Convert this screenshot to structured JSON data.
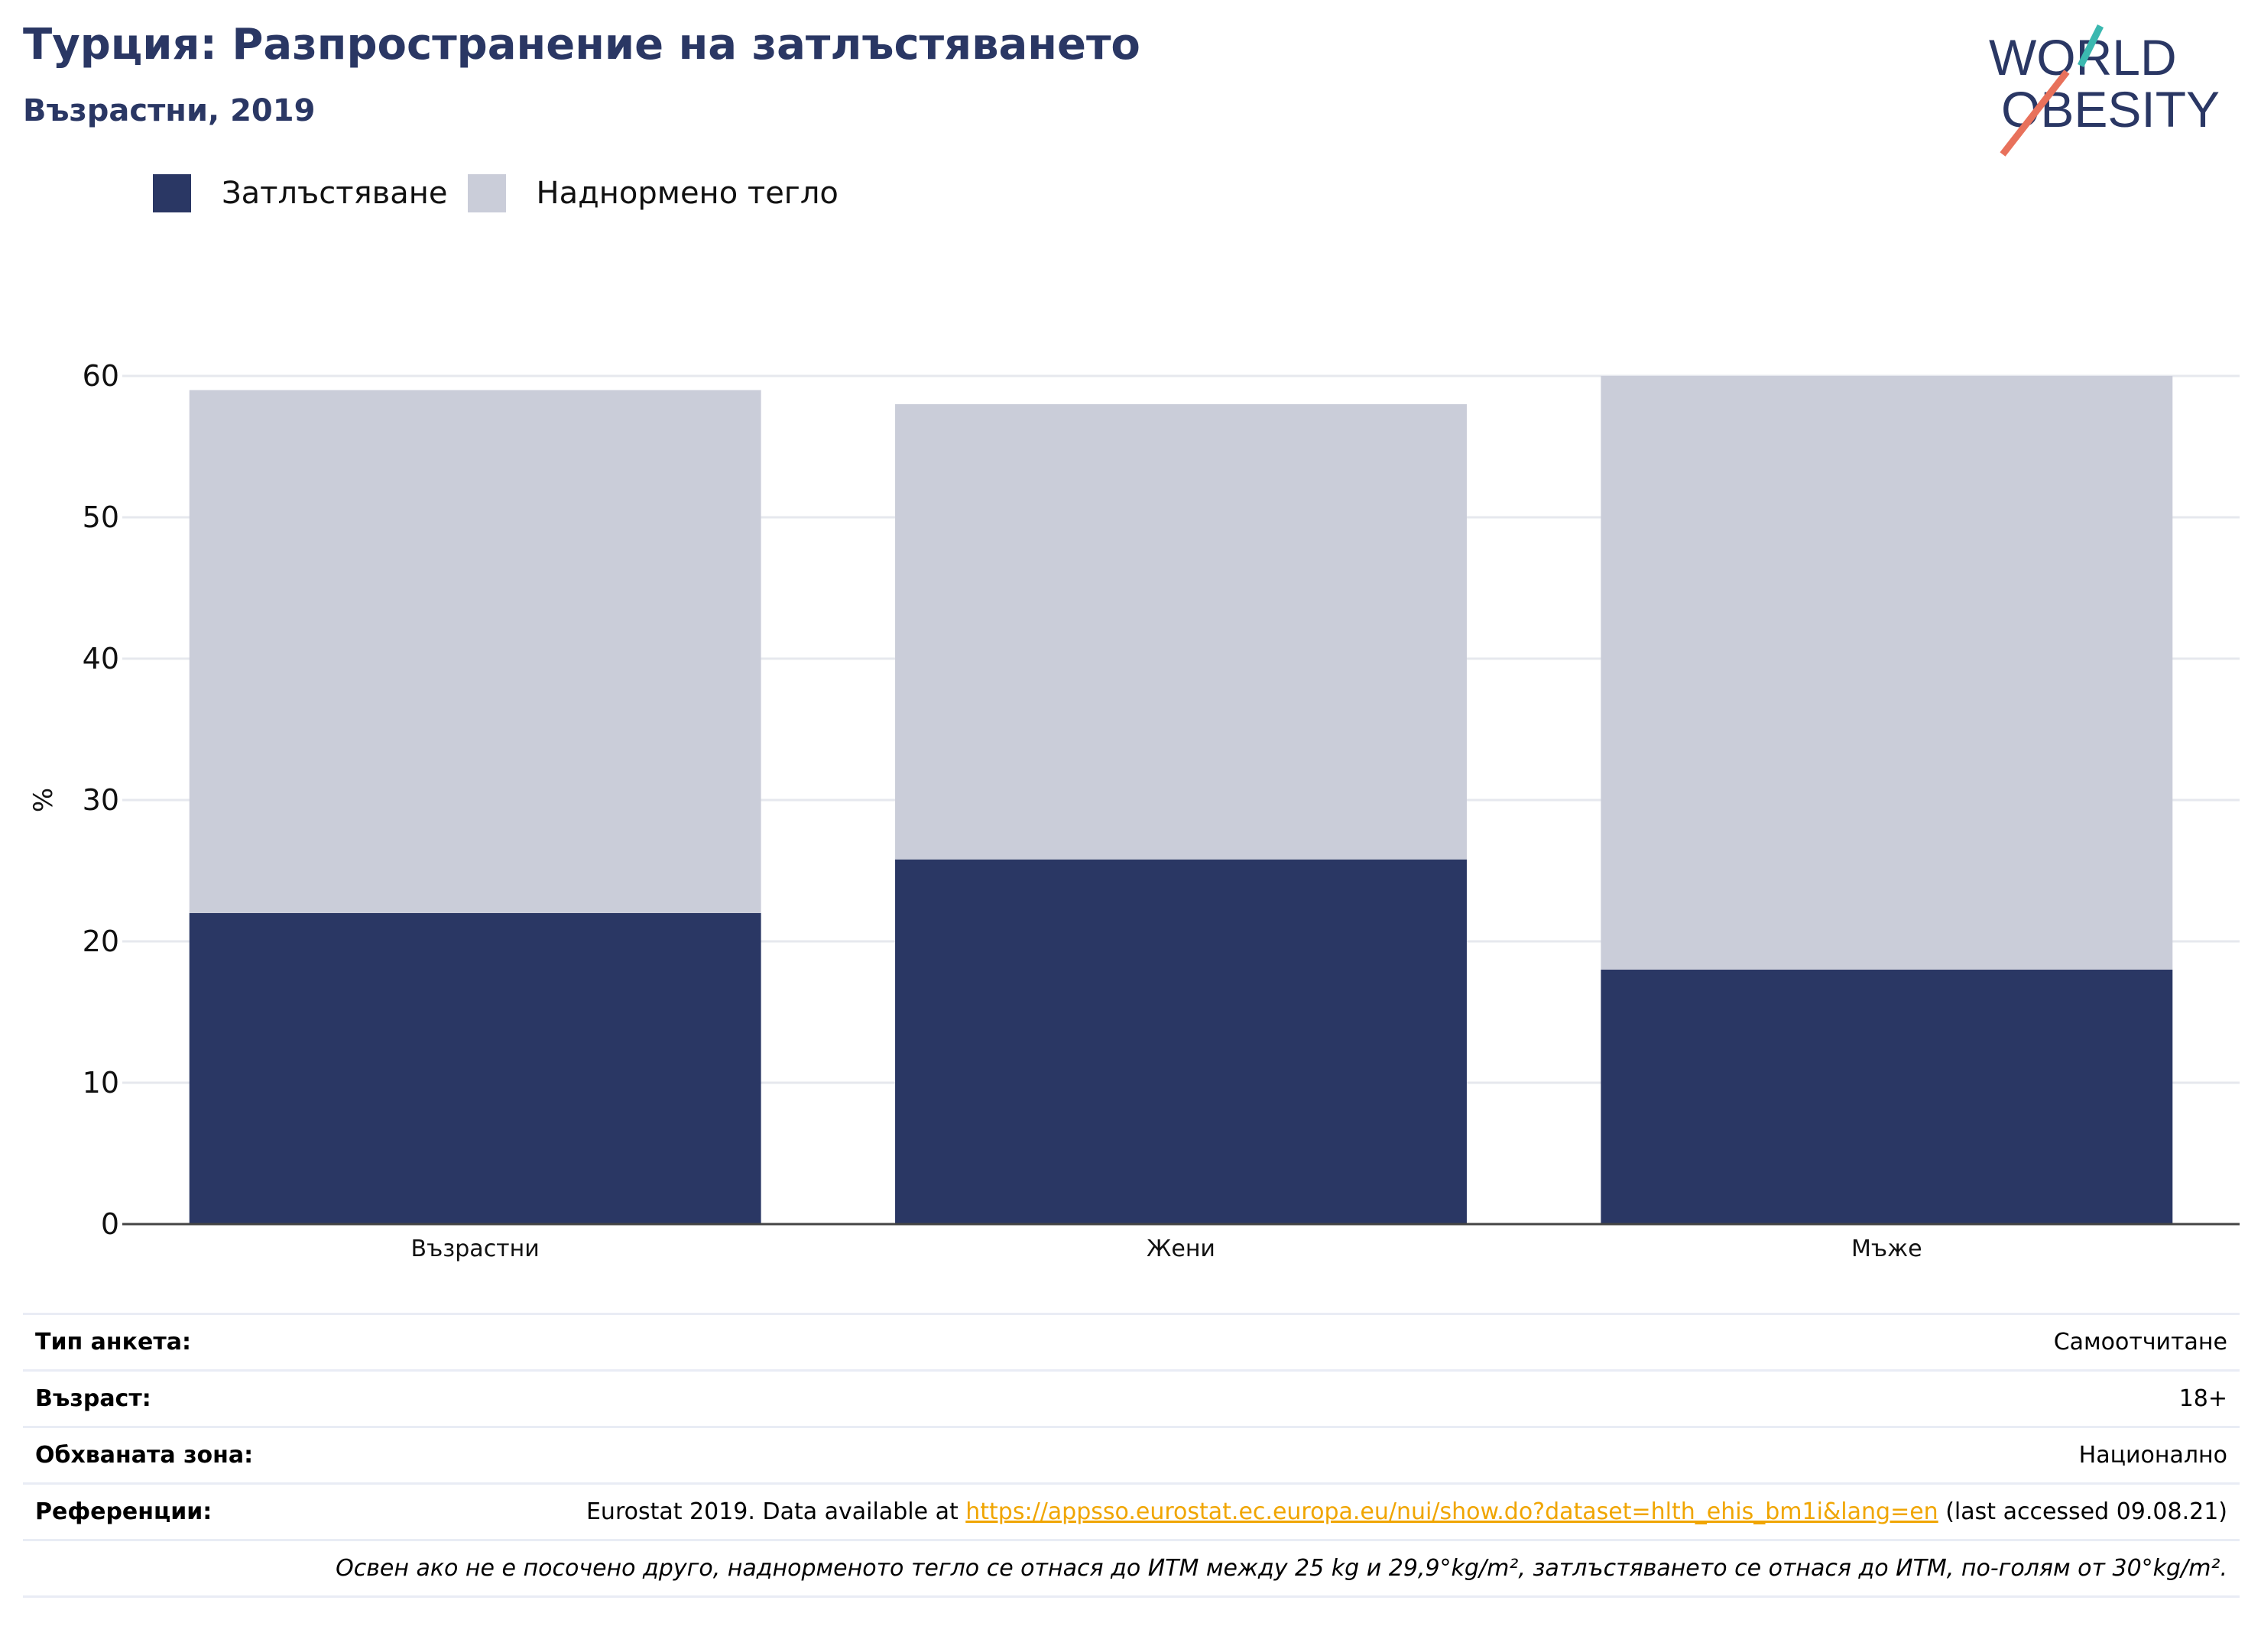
{
  "header": {
    "title": "Турция: Разпространение на затлъстяването",
    "subtitle": "Възрастни, 2019"
  },
  "logo": {
    "line1": "WORLD",
    "line2": "OBESITY"
  },
  "legend": [
    {
      "label": "Затлъстяване",
      "color": "#2a3764"
    },
    {
      "label": "Наднормено тегло",
      "color": "#cacdd9"
    }
  ],
  "chart_data": {
    "type": "bar",
    "stacked": true,
    "categories": [
      "Възрастни",
      "Жени",
      "Мъже"
    ],
    "series": [
      {
        "name": "Затлъстяване",
        "color": "#2a3764",
        "values": [
          22.0,
          25.8,
          18.0
        ]
      },
      {
        "name": "Наднормено тегло",
        "color": "#cacdd9",
        "values": [
          37.0,
          32.2,
          42.0
        ]
      }
    ],
    "ylabel": "%",
    "ylim": [
      0,
      60
    ],
    "yticks": [
      0,
      10,
      20,
      30,
      40,
      50,
      60
    ],
    "grid": true,
    "legend_position": "top-left"
  },
  "info": {
    "rows": [
      {
        "key": "Тип анкета:",
        "value": "Самоотчитане"
      },
      {
        "key": "Възраст:",
        "value": "18+"
      },
      {
        "key": "Обхваната зона:",
        "value": "Национално"
      }
    ],
    "reference": {
      "key": "Референции:",
      "prefix": "Eurostat 2019. Data available at ",
      "link": "https://appsso.eurostat.ec.europa.eu/nui/show.do?dataset=hlth_ehis_bm1i&lang=en",
      "suffix": " (last accessed 09.08.21)"
    },
    "footnote": "Освен ако не е посочено друго, наднорменото тегло се отнася до ИТМ между 25 kg и 29,9°kg/m², затлъстяването се отнася до ИТМ, по-голям от 30°kg/m²."
  }
}
